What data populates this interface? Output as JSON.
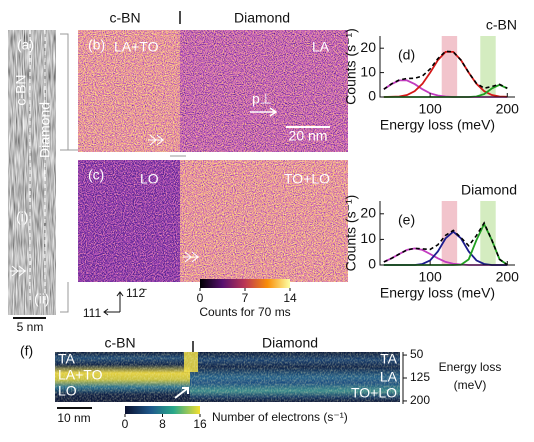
{
  "header": {
    "left": "c-BN",
    "right": "Diamond"
  },
  "panel_a": {
    "label": "(a)",
    "top": "c-BN",
    "side": "Diamond",
    "marker_i": "(i)",
    "marker_ii": "(ii)",
    "scale_bar": "5 nm"
  },
  "panel_b": {
    "label": "(b)",
    "left": "LA+TO",
    "right": "LA",
    "momentum": "p⊥",
    "scale_bar": "20 nm"
  },
  "panel_c": {
    "label": "(c)",
    "left": "LO",
    "right": "TO+LO"
  },
  "directions": {
    "x": "111",
    "y": "112̄"
  },
  "colorbar_bc": {
    "lim": [
      0,
      14
    ],
    "ticks": [
      0,
      7,
      14
    ],
    "label": "Counts for 70 ms"
  },
  "chart_data": [
    {
      "type": "line",
      "label": "(d)",
      "title": "c-BN",
      "xlabel": "Energy loss (meV)",
      "ylabel": "Counts (s⁻¹)",
      "xlim": [
        35,
        210
      ],
      "ylim": [
        0,
        25
      ],
      "xticks": [
        100,
        200
      ],
      "yticks": [
        0,
        10,
        20
      ],
      "bands": [
        {
          "x0": 115,
          "x1": 135,
          "color": "#f2c4cc"
        },
        {
          "x0": 165,
          "x1": 185,
          "color": "#d4ecc0"
        }
      ],
      "x": [
        40,
        50,
        60,
        70,
        80,
        90,
        100,
        110,
        120,
        130,
        140,
        150,
        160,
        170,
        180,
        190,
        200
      ],
      "series": [
        {
          "color": "#c23cbf",
          "values": [
            3.2,
            5.3,
            6.8,
            6.8,
            5.3,
            3.2,
            1.5,
            0.6,
            0.2,
            0,
            0,
            0,
            0,
            0,
            0,
            0,
            0
          ]
        },
        {
          "color": "#d41818",
          "values": [
            0,
            0.1,
            0.2,
            0.8,
            2.4,
            5.4,
            10.0,
            15.1,
            18.5,
            18.5,
            15.1,
            10.0,
            5.4,
            2.4,
            0.8,
            0.2,
            0.1
          ]
        },
        {
          "color": "#22a022",
          "values": [
            0,
            0,
            0,
            0,
            0,
            0,
            0,
            0,
            0,
            0,
            0,
            0,
            0.2,
            1.2,
            3.5,
            5,
            3.5
          ]
        },
        {
          "color": "#000000",
          "dash": true,
          "values": [
            3.2,
            5.4,
            7.0,
            7.6,
            7.7,
            8.6,
            11.5,
            15.7,
            18.7,
            18.5,
            15.1,
            10.0,
            5.6,
            3.6,
            4.3,
            5.2,
            3.6
          ]
        }
      ]
    },
    {
      "type": "line",
      "label": "(e)",
      "title": "Diamond",
      "xlabel": "Energy loss (meV)",
      "ylabel": "Counts (s⁻¹)",
      "xlim": [
        35,
        210
      ],
      "ylim": [
        0,
        25
      ],
      "xticks": [
        100,
        200
      ],
      "yticks": [
        0,
        10,
        20
      ],
      "bands": [
        {
          "x0": 115,
          "x1": 135,
          "color": "#f2c4cc"
        },
        {
          "x0": 165,
          "x1": 185,
          "color": "#d4ecc0"
        }
      ],
      "x": [
        40,
        50,
        60,
        70,
        80,
        90,
        100,
        110,
        120,
        130,
        140,
        150,
        160,
        170,
        180,
        190,
        200
      ],
      "series": [
        {
          "color": "#c23cbf",
          "values": [
            1.2,
            2.6,
            4.3,
            5.9,
            6.5,
            5.9,
            4.3,
            2.6,
            1.2,
            0.5,
            0.2,
            0,
            0,
            0,
            0,
            0,
            0
          ]
        },
        {
          "color": "#1c1c8c",
          "values": [
            0,
            0,
            0,
            0,
            0,
            0.4,
            1.8,
            5.3,
            10.4,
            13,
            10.4,
            5.3,
            1.8,
            0.4,
            0,
            0,
            0
          ]
        },
        {
          "color": "#22a022",
          "values": [
            0,
            0,
            0,
            0,
            0,
            0,
            0,
            0,
            0,
            0,
            0.1,
            2.2,
            9.7,
            16,
            9.7,
            2.2,
            0.1
          ]
        },
        {
          "color": "#000000",
          "dash": true,
          "values": [
            1.2,
            2.6,
            4.3,
            5.9,
            6.5,
            6.3,
            6.1,
            7.9,
            11.6,
            13.5,
            10.7,
            7.5,
            11.5,
            16.4,
            9.7,
            2.2,
            0.1
          ]
        }
      ]
    }
  ],
  "panel_f": {
    "label": "(f)",
    "left": "c-BN",
    "right": "Diamond",
    "modes_left": [
      "TA",
      "LA+TO",
      "LO"
    ],
    "modes_right": [
      "TA",
      "LA",
      "TO+LO"
    ],
    "ylim": [
      40,
      210
    ],
    "yticks": [
      50,
      125,
      200
    ],
    "ylabel": [
      "Energy loss",
      "(meV)"
    ],
    "scale_bar": "10 nm",
    "colorbar": {
      "lim": [
        0,
        16
      ],
      "ticks": [
        0,
        8,
        16
      ],
      "label": "Number of electrons (s⁻¹)"
    }
  }
}
